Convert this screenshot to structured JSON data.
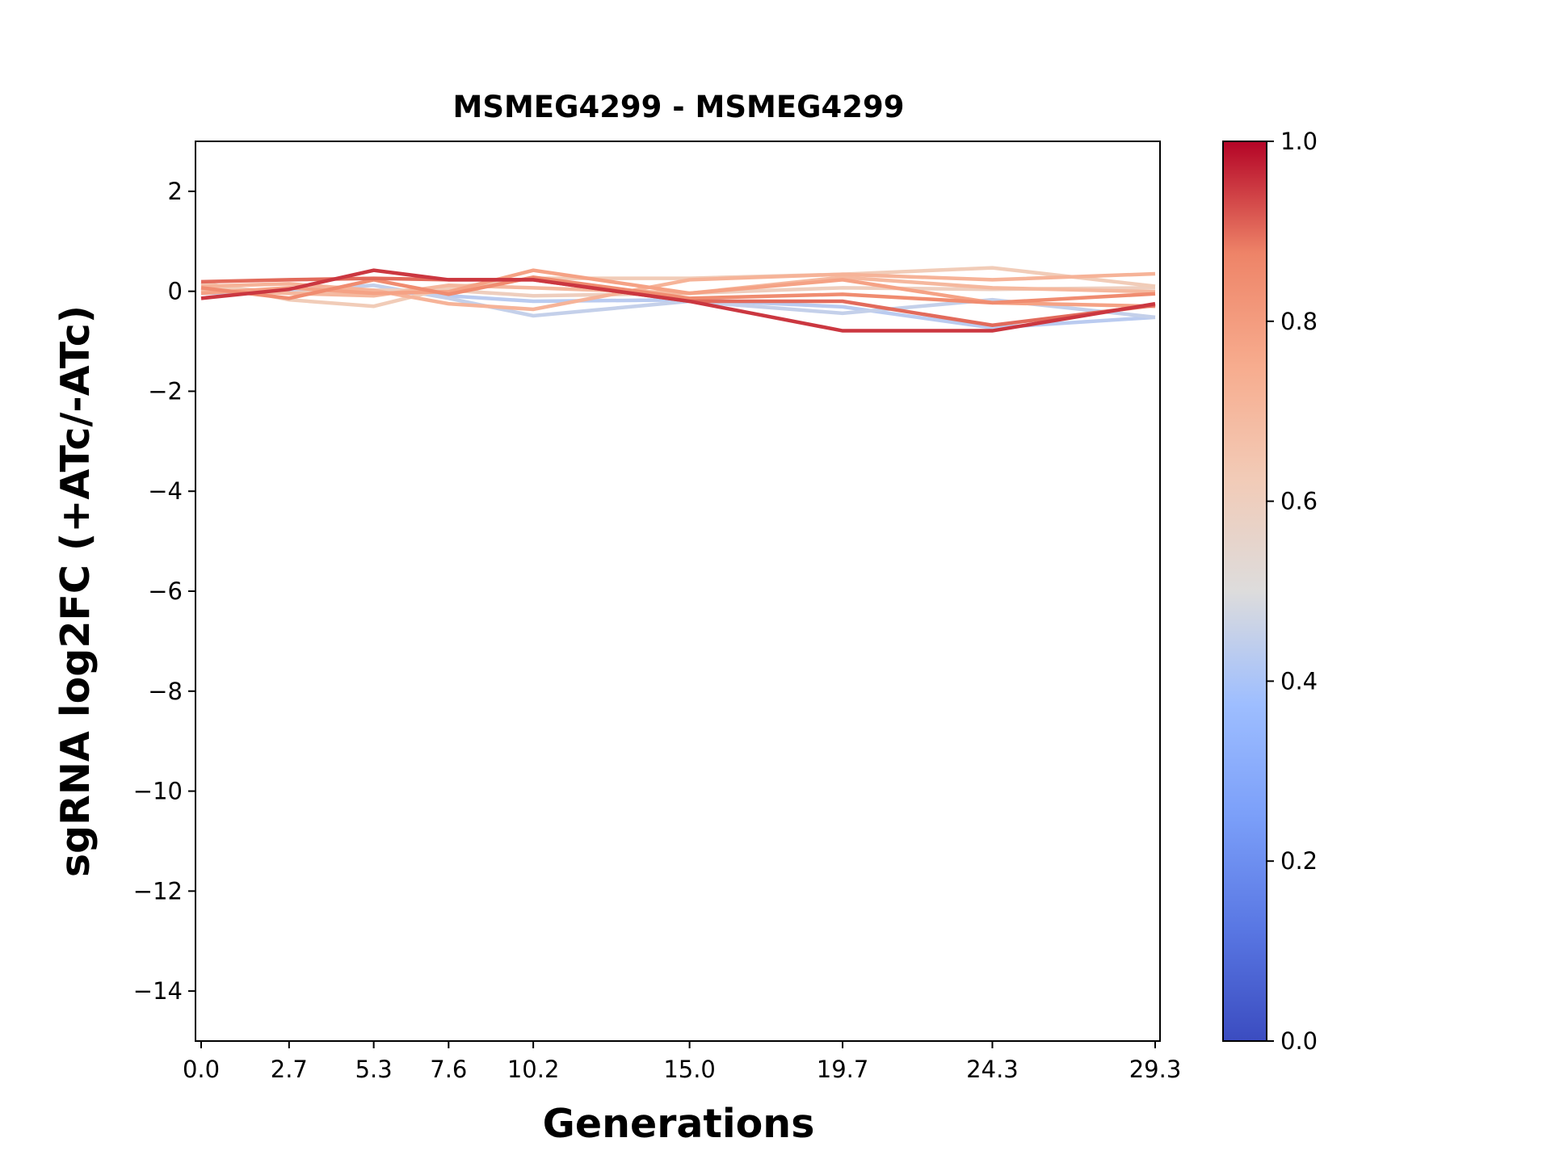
{
  "chart_data": {
    "type": "line",
    "title": "MSMEG4299 - MSMEG4299",
    "xlabel": "Generations",
    "ylabel": "sgRNA log2FC (+ATc/-ATc)",
    "x": [
      0.0,
      2.7,
      5.3,
      7.6,
      10.2,
      15.0,
      19.7,
      24.3,
      29.3
    ],
    "x_tick_labels": [
      "0.0",
      "2.7",
      "5.3",
      "7.6",
      "10.2",
      "15.0",
      "19.7",
      "24.3",
      "29.3"
    ],
    "ylim": [
      -15,
      3
    ],
    "y_ticks": [
      2,
      0,
      -2,
      -4,
      -6,
      -8,
      -10,
      -12,
      -14
    ],
    "y_tick_labels": [
      "2",
      "0",
      "−2",
      "−4",
      "−6",
      "−8",
      "−10",
      "−12",
      "−14"
    ],
    "grid": false,
    "colormap": "coolwarm",
    "colorbar": {
      "range": [
        0,
        1
      ],
      "ticks": [
        0.0,
        0.2,
        0.4,
        0.6,
        0.8,
        1.0
      ],
      "tick_labels": [
        "0.0",
        "0.2",
        "0.4",
        "0.6",
        "0.8",
        "1.0"
      ],
      "stops": [
        "#3b4cc0",
        "#5977e3",
        "#7b9ff9",
        "#9ebeff",
        "#dddcdc",
        "#f2cbb7",
        "#f7ac8e",
        "#ee8468",
        "#b40426"
      ]
    },
    "series": [
      {
        "color_value": 0.43,
        "values": [
          -0.04,
          -0.01,
          0.02,
          -0.09,
          -0.2,
          -0.17,
          -0.31,
          -0.73,
          -0.52
        ]
      },
      {
        "color_value": 0.45,
        "values": [
          0.02,
          0.02,
          0.12,
          -0.14,
          -0.49,
          -0.2,
          -0.44,
          -0.17,
          -0.52
        ]
      },
      {
        "color_value": 0.6,
        "values": [
          0.12,
          -0.04,
          0.02,
          0.02,
          -0.09,
          -0.04,
          0.07,
          0.04,
          0.07
        ]
      },
      {
        "color_value": 0.62,
        "values": [
          0.18,
          -0.17,
          -0.3,
          0.07,
          0.26,
          0.26,
          0.34,
          0.47,
          0.1
        ]
      },
      {
        "color_value": 0.7,
        "values": [
          0.02,
          -0.04,
          -0.09,
          0.12,
          0.07,
          -0.04,
          0.28,
          0.07,
          -0.01
        ]
      },
      {
        "color_value": 0.72,
        "values": [
          0.1,
          0.15,
          0.02,
          -0.25,
          -0.36,
          0.23,
          0.34,
          0.23,
          0.35
        ]
      },
      {
        "color_value": 0.78,
        "values": [
          -0.04,
          0.07,
          -0.04,
          -0.01,
          0.42,
          -0.04,
          0.23,
          -0.23,
          -0.3
        ]
      },
      {
        "color_value": 0.85,
        "values": [
          0.07,
          -0.14,
          0.23,
          -0.06,
          0.28,
          -0.14,
          -0.06,
          -0.23,
          -0.05
        ]
      },
      {
        "color_value": 0.9,
        "values": [
          0.19,
          0.23,
          0.26,
          0.23,
          0.23,
          -0.2,
          -0.2,
          -0.68,
          -0.28
        ]
      },
      {
        "color_value": 0.95,
        "values": [
          -0.14,
          0.04,
          0.42,
          0.23,
          0.23,
          -0.2,
          -0.79,
          -0.79,
          -0.25
        ]
      }
    ]
  }
}
